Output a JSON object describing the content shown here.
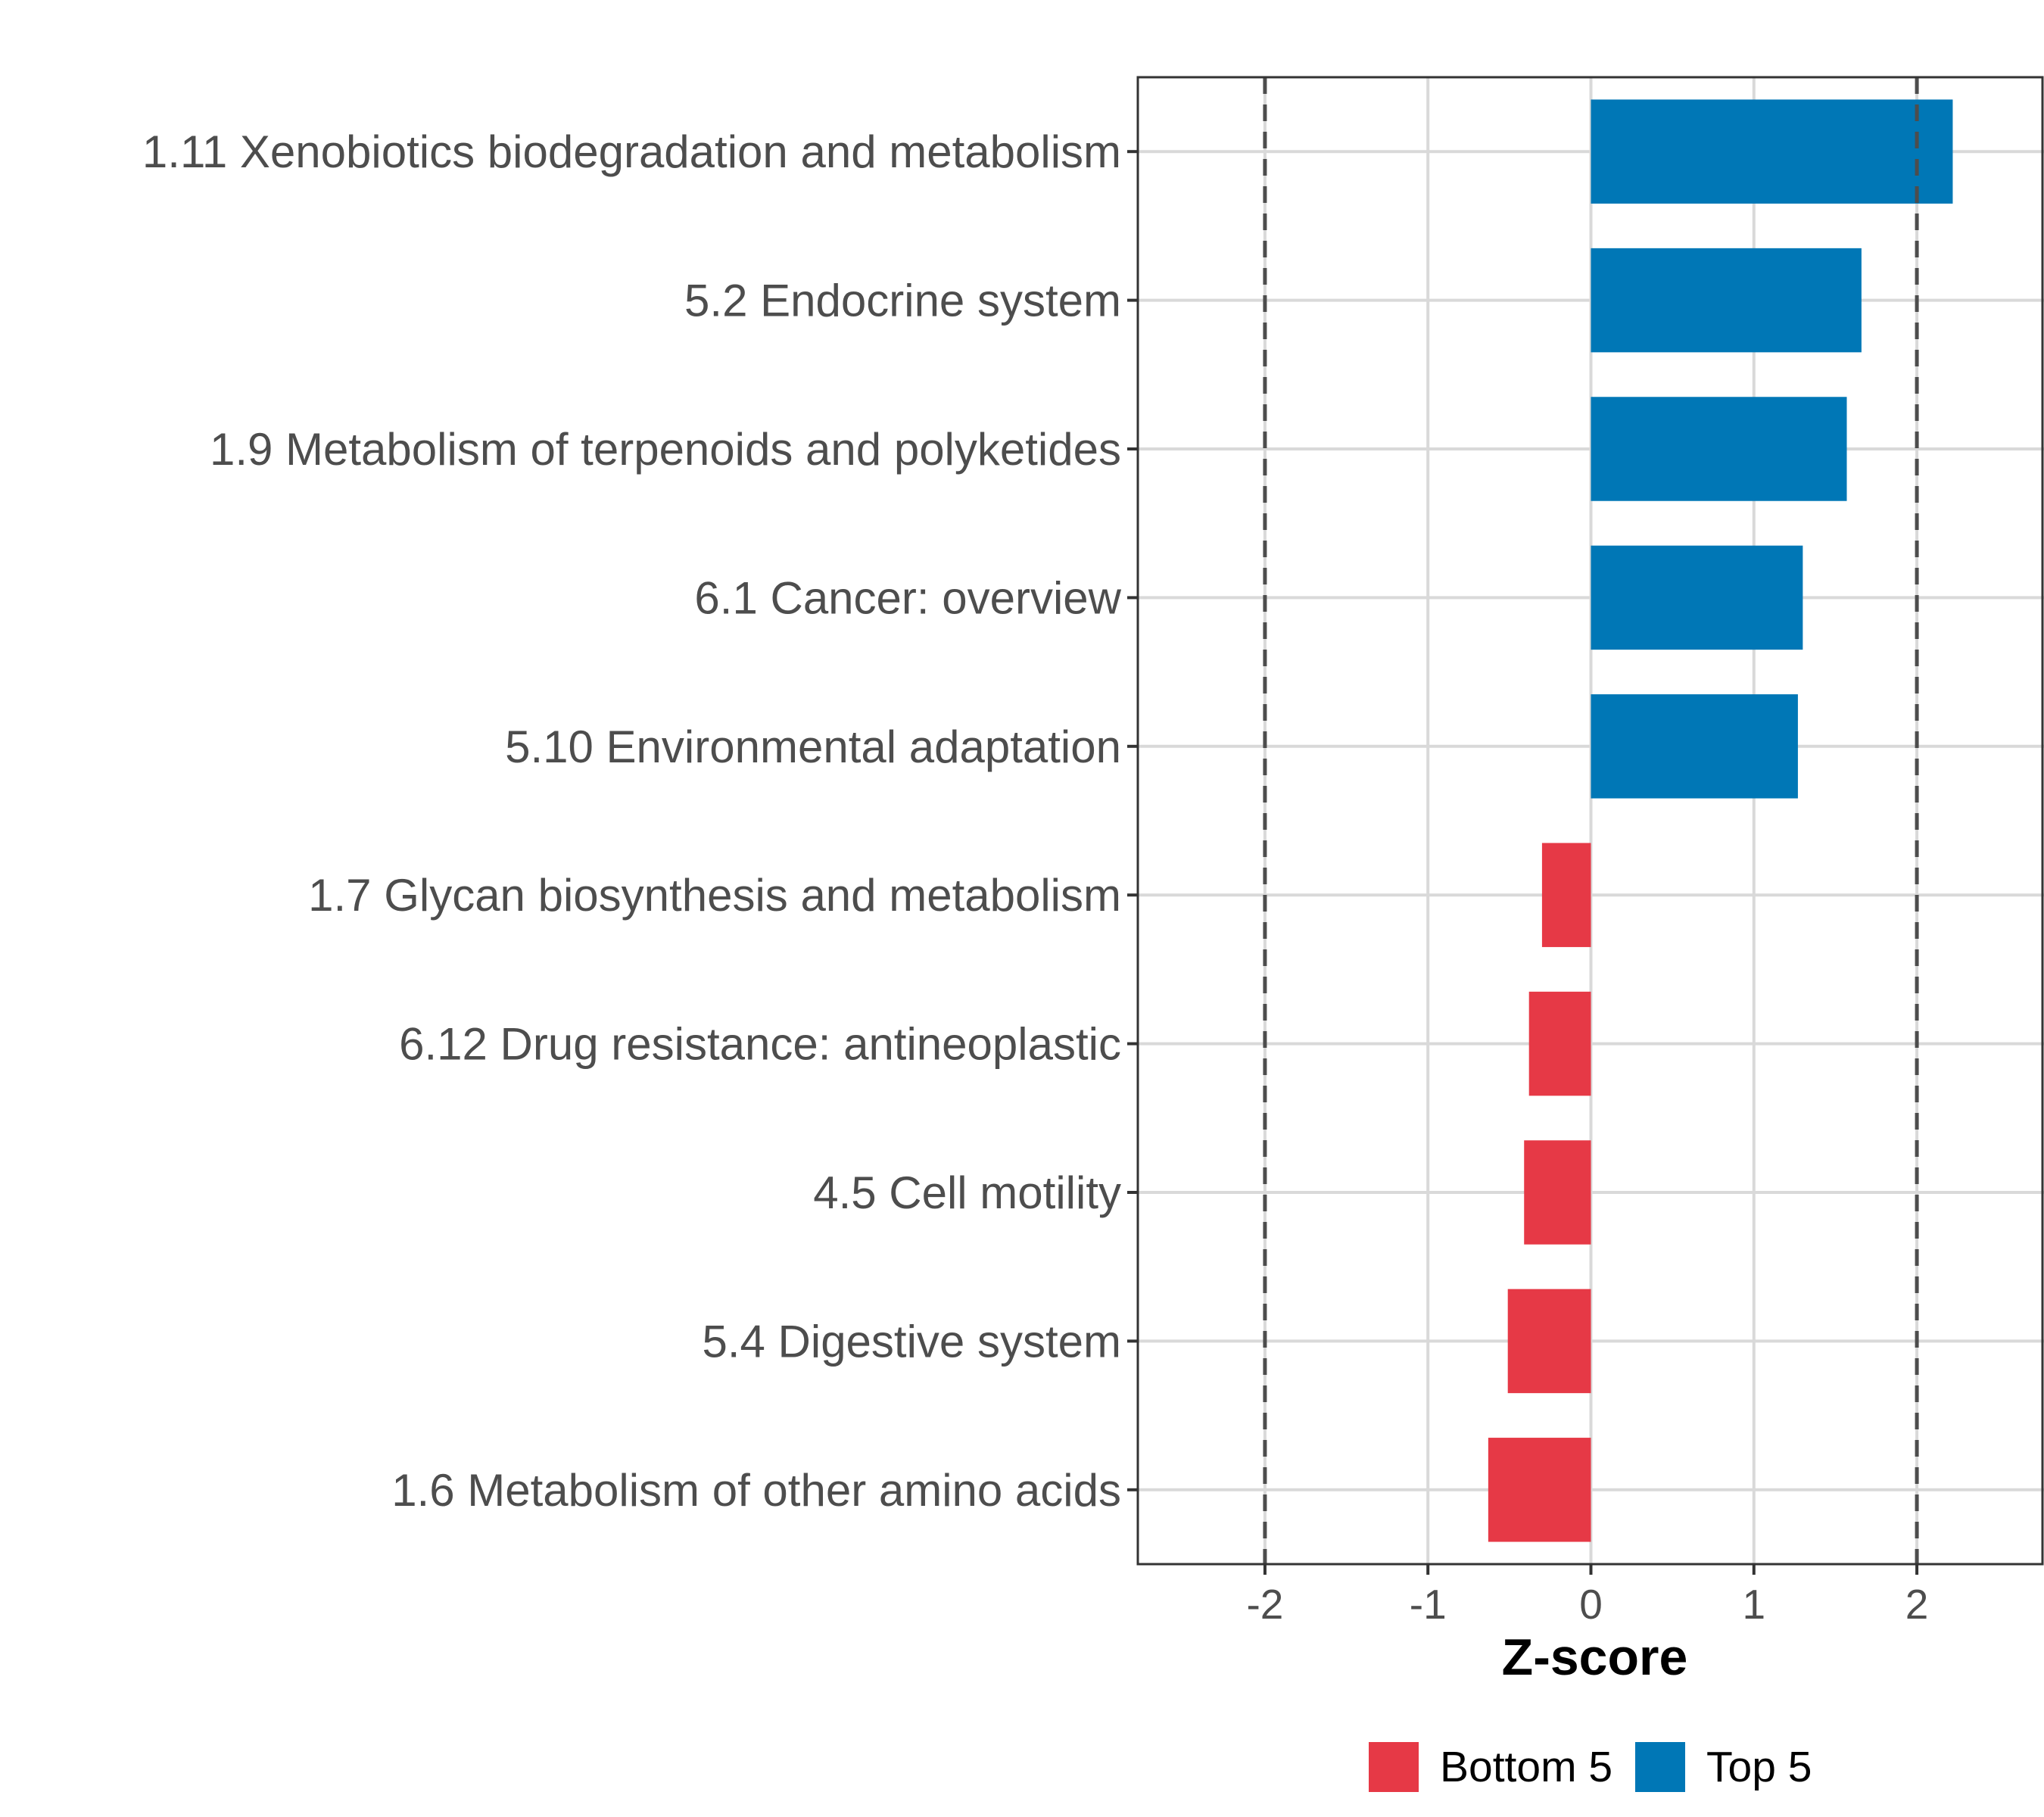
{
  "chart_data": {
    "type": "bar",
    "orientation": "horizontal",
    "categories": [
      "1.11 Xenobiotics biodegradation and metabolism",
      "5.2 Endocrine system",
      "1.9 Metabolism of terpenoids and polyketides",
      "6.1 Cancer: overview",
      "5.10 Environmental adaptation",
      "1.7 Glycan biosynthesis and metabolism",
      "6.12 Drug resistance: antineoplastic",
      "4.5 Cell motility",
      "5.4 Digestive system",
      "1.6 Metabolism of other amino acids"
    ],
    "values": [
      2.22,
      1.66,
      1.57,
      1.3,
      1.27,
      -0.3,
      -0.38,
      -0.41,
      -0.51,
      -0.63
    ],
    "groups": [
      "Top 5",
      "Top 5",
      "Top 5",
      "Top 5",
      "Top 5",
      "Bottom 5",
      "Bottom 5",
      "Bottom 5",
      "Bottom 5",
      "Bottom 5"
    ],
    "xlabel": "Z-score",
    "ylabel": "",
    "title": "",
    "xlim": [
      -2.78,
      2.78
    ],
    "xticks": [
      -2,
      -1,
      0,
      1,
      2
    ],
    "xtick_labels": [
      "-2",
      "-1",
      "0",
      "1",
      "2"
    ],
    "reference_lines": [
      -2,
      2
    ],
    "grid": true,
    "legend": {
      "position": "bottom",
      "entries": [
        {
          "label": "Bottom 5",
          "color": "#e63946"
        },
        {
          "label": "Top 5",
          "color": "#0077b6"
        }
      ]
    }
  }
}
